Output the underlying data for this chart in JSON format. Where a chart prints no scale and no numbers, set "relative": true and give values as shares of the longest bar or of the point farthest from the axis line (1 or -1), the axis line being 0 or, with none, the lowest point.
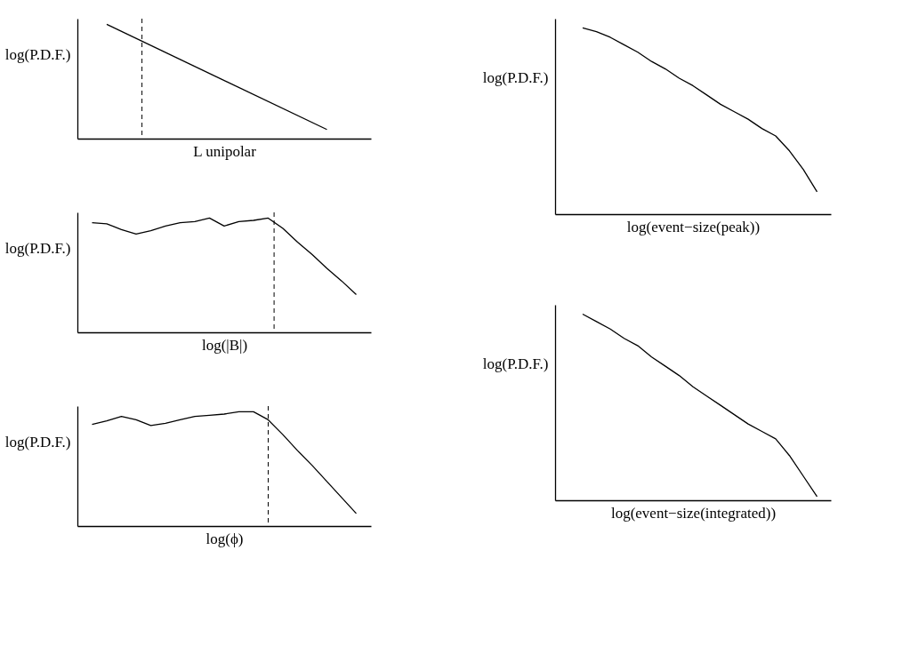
{
  "chart_data": [
    {
      "type": "line",
      "relative": true,
      "ylabel": "log(P.D.F.)",
      "xlabel": "L unipolar",
      "tick_labels": false,
      "grid": false,
      "marker": "none",
      "line_style": "solid",
      "categories": [
        null,
        null,
        null,
        null,
        null,
        null,
        null,
        null,
        null,
        null,
        null,
        null,
        null,
        null,
        null,
        null,
        null,
        null,
        null,
        null,
        null
      ],
      "series": [
        {
          "color": "#000000",
          "values": [
            null,
            null,
            1,
            null,
            null,
            null,
            null,
            null,
            null,
            null,
            null,
            null,
            null,
            null,
            null,
            null,
            null,
            0.08,
            null,
            null,
            null
          ]
        }
      ]
    },
    {
      "type": "line",
      "relative": true,
      "ylabel": "log(P.D.F.)",
      "xlabel": "log(|B|)",
      "tick_labels": false,
      "grid": false,
      "marker": "none",
      "line_style": "solid",
      "categories": [
        null,
        null,
        null,
        null,
        null,
        null,
        null,
        null,
        null,
        null,
        null,
        null,
        null,
        null,
        null,
        null,
        null,
        null,
        null,
        null,
        null
      ],
      "series": [
        {
          "color": "#000000",
          "values": [
            null,
            0.96,
            0.95,
            0.9,
            0.86,
            0.89,
            0.93,
            0.96,
            0.97,
            1,
            0.93,
            0.97,
            0.98,
            1,
            0.91,
            0.79,
            0.68,
            0.56,
            0.45,
            0.33,
            null
          ]
        }
      ]
    },
    {
      "type": "line",
      "relative": true,
      "ylabel": "log(P.D.F.)",
      "xlabel": "log(ϕ)",
      "tick_labels": false,
      "grid": false,
      "marker": "none",
      "line_style": "solid",
      "categories": [
        null,
        null,
        null,
        null,
        null,
        null,
        null,
        null,
        null,
        null,
        null,
        null,
        null,
        null,
        null,
        null,
        null,
        null,
        null,
        null,
        null
      ],
      "series": [
        {
          "color": "#000000",
          "values": [
            null,
            0.89,
            0.92,
            0.96,
            0.93,
            0.88,
            0.9,
            0.93,
            0.96,
            0.97,
            0.98,
            1,
            1,
            0.93,
            0.8,
            0.66,
            0.53,
            0.39,
            0.25,
            0.11,
            null
          ]
        }
      ]
    },
    {
      "type": "line",
      "relative": true,
      "ylabel": "log(P.D.F.)",
      "xlabel": "log(event−size(peak))",
      "tick_labels": false,
      "grid": false,
      "marker": "none",
      "line_style": "solid",
      "categories": [
        null,
        null,
        null,
        null,
        null,
        null,
        null,
        null,
        null,
        null,
        null,
        null,
        null,
        null,
        null,
        null,
        null,
        null,
        null,
        null,
        null
      ],
      "series": [
        {
          "color": "#000000",
          "values": [
            null,
            null,
            1,
            0.98,
            0.95,
            0.91,
            0.87,
            0.82,
            0.78,
            0.73,
            0.69,
            0.64,
            0.59,
            0.55,
            0.51,
            0.46,
            0.42,
            0.34,
            0.24,
            0.12,
            null
          ]
        }
      ]
    },
    {
      "type": "line",
      "relative": true,
      "ylabel": "log(P.D.F.)",
      "xlabel": "log(event−size(integrated))",
      "tick_labels": false,
      "grid": false,
      "marker": "none",
      "line_style": "solid",
      "categories": [
        null,
        null,
        null,
        null,
        null,
        null,
        null,
        null,
        null,
        null,
        null,
        null,
        null,
        null,
        null,
        null,
        null,
        null,
        null,
        null,
        null
      ],
      "series": [
        {
          "color": "#000000",
          "values": [
            null,
            null,
            1,
            0.96,
            0.92,
            0.87,
            0.83,
            0.77,
            0.72,
            0.67,
            0.61,
            0.56,
            0.51,
            0.46,
            0.41,
            0.37,
            0.33,
            0.24,
            0.13,
            0.02,
            null
          ]
        }
      ]
    }
  ]
}
